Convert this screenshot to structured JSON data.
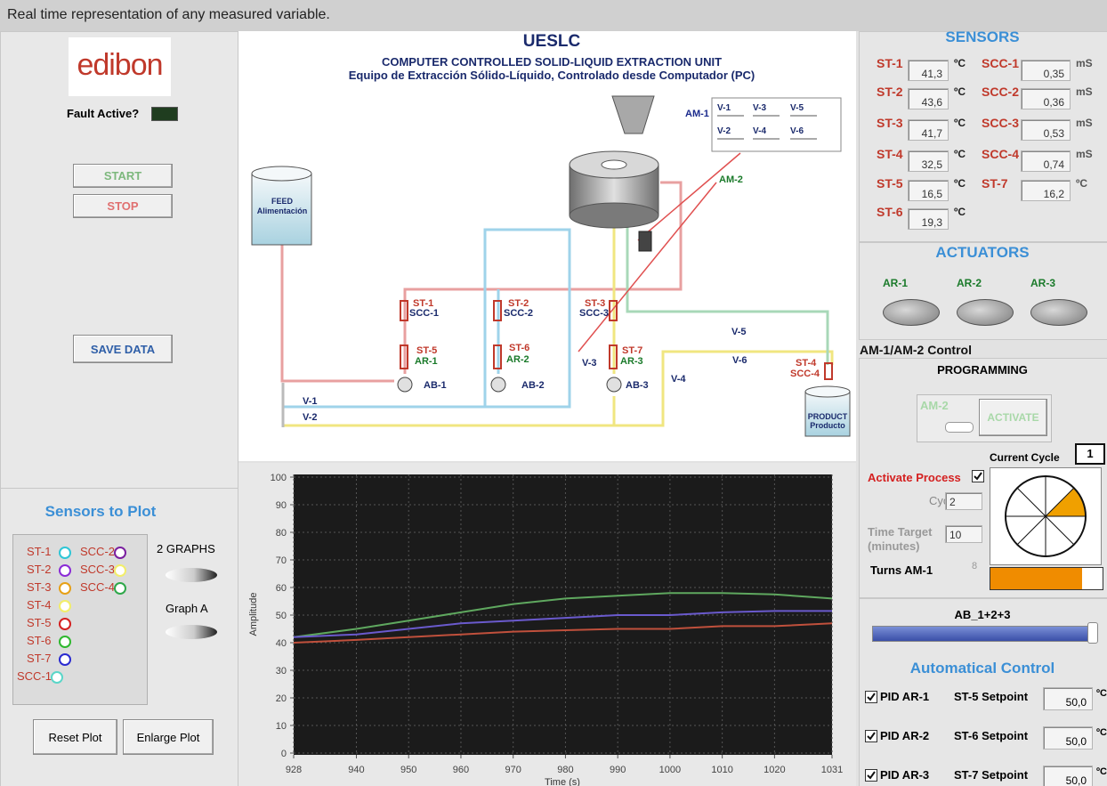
{
  "caption": "Real time representation of any measured variable.",
  "left_panel": {
    "logo": "edibon",
    "fault_label": "Fault Active?",
    "start": "START",
    "stop": "STOP",
    "save_data": "SAVE DATA"
  },
  "diagram": {
    "title": "UESLC",
    "subtitle": "COMPUTER CONTROLLED SOLID-LIQUID EXTRACTION UNIT",
    "subtitle_es": "Equipo de Extracción Sólido-Líquido, Controlado desde Computador (PC)",
    "feed": "FEED",
    "feed_es": "Alimentación",
    "product": "PRODUCT",
    "product_es": "Producto",
    "valve_box": [
      "V-1",
      "V-3",
      "V-5",
      "V-2",
      "V-4",
      "V-6"
    ],
    "tags": [
      "AM-1",
      "AM-2",
      "ST-1",
      "SCC-1",
      "ST-2",
      "SCC-2",
      "ST-3",
      "SCC-3",
      "ST-5",
      "AR-1",
      "ST-6",
      "AR-2",
      "ST-7",
      "AR-3",
      "AB-1",
      "AB-2",
      "AB-3",
      "V-3",
      "V-4",
      "V-5",
      "V-6",
      "ST-4",
      "SCC-4",
      "V-1",
      "V-2"
    ]
  },
  "sensors": {
    "title": "SENSORS",
    "readings": [
      {
        "label": "ST-1",
        "value": "41,3",
        "unit": "ºC"
      },
      {
        "label": "SCC-1",
        "value": "0,35",
        "unit": "mS"
      },
      {
        "label": "ST-2",
        "value": "43,6",
        "unit": "ºC"
      },
      {
        "label": "SCC-2",
        "value": "0,36",
        "unit": "mS"
      },
      {
        "label": "ST-3",
        "value": "41,7",
        "unit": "ºC"
      },
      {
        "label": "SCC-3",
        "value": "0,53",
        "unit": "mS"
      },
      {
        "label": "ST-4",
        "value": "32,5",
        "unit": "ºC"
      },
      {
        "label": "SCC-4",
        "value": "0,74",
        "unit": "mS"
      },
      {
        "label": "ST-5",
        "value": "16,5",
        "unit": "ºC"
      },
      {
        "label": "ST-7",
        "value": "16,2",
        "unit": "ºC"
      },
      {
        "label": "ST-6",
        "value": "19,3",
        "unit": "ºC"
      }
    ]
  },
  "actuators": {
    "title": "ACTUATORS",
    "items": [
      "AR-1",
      "AR-2",
      "AR-3"
    ]
  },
  "programming": {
    "control_title": "AM-1/AM-2 Control",
    "title": "PROGRAMMING",
    "switch_label": "AM-2",
    "activate": "ACTIVATE",
    "current_cycle_label": "Current Cycle",
    "current_cycle": "1",
    "activate_process": "Activate Process",
    "cycles_label": "Cycles",
    "cycles": "2",
    "time_target_label": "Time Target",
    "time_target_unit": "(minutes)",
    "time_target": "10",
    "turns_label": "Turns AM-1",
    "turns": "8"
  },
  "pumps": {
    "label": "AB_1+2+3"
  },
  "auto_control": {
    "title": "Automatical Control",
    "rows": [
      {
        "pid": "PID AR-1",
        "setpoint": "ST-5 Setpoint",
        "value": "50,0",
        "unit": "ºC"
      },
      {
        "pid": "PID AR-2",
        "setpoint": "ST-6 Setpoint",
        "value": "50,0",
        "unit": "ºC"
      },
      {
        "pid": "PID AR-3",
        "setpoint": "ST-7 Setpoint",
        "value": "50,0",
        "unit": "ºC"
      }
    ]
  },
  "plot_panel": {
    "title": "Sensors to Plot",
    "items": [
      {
        "name": "ST-1",
        "color": "#2fc6d6"
      },
      {
        "name": "ST-2",
        "color": "#8a2bd6"
      },
      {
        "name": "ST-3",
        "color": "#e6a017"
      },
      {
        "name": "ST-4",
        "color": "#f2ee6a"
      },
      {
        "name": "ST-5",
        "color": "#d42020"
      },
      {
        "name": "ST-6",
        "color": "#2fb82f"
      },
      {
        "name": "ST-7",
        "color": "#2a2ad0"
      },
      {
        "name": "SCC-1",
        "color": "#5ad6c8"
      },
      {
        "name": "SCC-2",
        "color": "#7a1fa0"
      },
      {
        "name": "SCC-3",
        "color": "#f2ee6a"
      },
      {
        "name": "SCC-4",
        "color": "#2fa84a"
      }
    ],
    "two_graphs": "2 GRAPHS",
    "graph_a": "Graph A",
    "reset": "Reset Plot",
    "enlarge": "Enlarge Plot"
  },
  "chart_data": {
    "type": "line",
    "y_label": "Amplitude",
    "x_label": "Time (s)",
    "x": [
      928,
      940,
      950,
      960,
      970,
      980,
      990,
      1000,
      1010,
      1020,
      1031
    ],
    "series": [
      {
        "color": "#5fa85f",
        "values": [
          42,
          45,
          48,
          51,
          54,
          56,
          57,
          58,
          58,
          57.5,
          56
        ]
      },
      {
        "color": "#6a5acd",
        "values": [
          42,
          43,
          45,
          47,
          48,
          49,
          50,
          50,
          51,
          51.5,
          51.5
        ]
      },
      {
        "color": "#c0503c",
        "values": [
          40,
          41,
          42,
          43,
          44,
          44.5,
          45,
          45,
          46,
          46,
          47
        ]
      }
    ],
    "xlim": [
      928,
      1031
    ],
    "ylim": [
      0,
      100
    ],
    "xticks": [
      928,
      940,
      950,
      960,
      970,
      980,
      990,
      1000,
      1010,
      1020,
      1031
    ],
    "yticks": [
      0,
      10,
      20,
      30,
      40,
      50,
      60,
      70,
      80,
      90,
      100
    ],
    "grid": true
  }
}
